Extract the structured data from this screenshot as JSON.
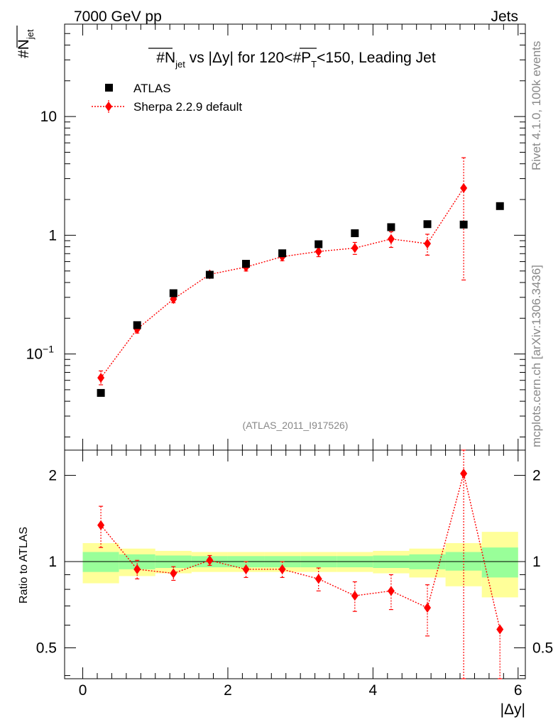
{
  "header": {
    "left": "7000 GeV pp",
    "right": "Jets"
  },
  "side_labels": {
    "rivet": "Rivet 4.1.0,  100k events",
    "mcplots": "mcplots.cern.ch [arXiv:1306.3436]"
  },
  "colors": {
    "atlas": "#000000",
    "sherpa": "#ff0000",
    "band_inner": "#99ff99",
    "band_outer": "#ffff99"
  },
  "chart_data": [
    {
      "type": "scatter",
      "title": "#N̅jet vs |Δy| for 120<#P̅T<150, Leading Jet",
      "title_parts": {
        "prefix": "#N",
        "sub1": "jet",
        "mid": " vs |Δy| for 120<#P",
        "sub2": "T",
        "suffix": "<150, Leading Jet"
      },
      "ylabel": "#N̅jet",
      "ylabel_parts": {
        "main": "#N",
        "sub": "jet"
      },
      "xlabel": "|Δy|",
      "yscale": "log",
      "xlim": [
        -0.25,
        6.1
      ],
      "ylim": [
        0.0155,
        60
      ],
      "yticks": [
        {
          "value": 10,
          "label": "10"
        },
        {
          "value": 1,
          "label": "1"
        },
        {
          "value": 0.1,
          "label": "10",
          "sup": "−1"
        }
      ],
      "watermark": "(ATLAS_2011_I917526)",
      "legend": {
        "position": "top-left",
        "entries": [
          "ATLAS",
          "Sherpa 2.2.9 default"
        ]
      },
      "series": [
        {
          "name": "ATLAS",
          "marker": "square",
          "x": [
            0.25,
            0.75,
            1.25,
            1.75,
            2.25,
            2.75,
            3.25,
            3.75,
            4.25,
            4.75,
            5.25,
            5.75
          ],
          "y": [
            0.047,
            0.175,
            0.325,
            0.465,
            0.575,
            0.705,
            0.84,
            1.04,
            1.17,
            1.24,
            1.23,
            1.76
          ]
        },
        {
          "name": "Sherpa 2.2.9 default",
          "marker": "diamond",
          "x": [
            0.25,
            0.75,
            1.25,
            1.75,
            2.25,
            2.75,
            3.25,
            3.75,
            4.25,
            4.75,
            5.25
          ],
          "y": [
            0.063,
            0.162,
            0.29,
            0.468,
            0.54,
            0.66,
            0.73,
            0.78,
            0.93,
            0.85,
            2.5
          ],
          "err_low": [
            0.008,
            0.012,
            0.02,
            0.02,
            0.04,
            0.05,
            0.07,
            0.09,
            0.14,
            0.17,
            2.08
          ],
          "err_high": [
            0.009,
            0.012,
            0.02,
            0.02,
            0.04,
            0.05,
            0.07,
            0.09,
            0.14,
            0.17,
            2.0
          ]
        }
      ]
    },
    {
      "type": "scatter",
      "ylabel": "Ratio to ATLAS",
      "xlabel": "|Δy|",
      "yscale": "log",
      "xlim": [
        -0.25,
        6.1
      ],
      "ylim": [
        0.39,
        2.45
      ],
      "yticks": [
        {
          "value": 2,
          "label": "2"
        },
        {
          "value": 1,
          "label": "1"
        },
        {
          "value": 0.5,
          "label": "0.5"
        }
      ],
      "xticks": [
        {
          "value": 0,
          "label": "0"
        },
        {
          "value": 2,
          "label": "2"
        },
        {
          "value": 4,
          "label": "4"
        },
        {
          "value": 6,
          "label": "6"
        }
      ],
      "bands": {
        "edges": [
          0,
          0.5,
          1.0,
          1.5,
          2.0,
          2.5,
          3.0,
          3.5,
          4.0,
          4.5,
          5.0,
          5.5,
          6.0
        ],
        "inner_low": [
          0.92,
          0.94,
          0.95,
          0.955,
          0.955,
          0.955,
          0.955,
          0.955,
          0.95,
          0.94,
          0.93,
          0.88
        ],
        "inner_high": [
          1.08,
          1.06,
          1.05,
          1.045,
          1.045,
          1.045,
          1.045,
          1.045,
          1.05,
          1.06,
          1.08,
          1.12
        ],
        "outer_low": [
          0.84,
          0.89,
          0.91,
          0.92,
          0.92,
          0.92,
          0.92,
          0.92,
          0.91,
          0.88,
          0.82,
          0.75
        ],
        "outer_high": [
          1.16,
          1.11,
          1.09,
          1.08,
          1.08,
          1.08,
          1.08,
          1.08,
          1.09,
          1.11,
          1.16,
          1.27
        ]
      },
      "series": [
        {
          "name": "Sherpa 2.2.9 default / ATLAS",
          "marker": "diamond",
          "x": [
            0.25,
            0.75,
            1.25,
            1.75,
            2.25,
            2.75,
            3.25,
            3.75,
            4.25,
            4.75,
            5.25,
            5.75
          ],
          "y": [
            1.34,
            0.94,
            0.91,
            1.01,
            0.94,
            0.94,
            0.87,
            0.76,
            0.79,
            0.69,
            2.03,
            0.58
          ],
          "err_low": [
            0.22,
            0.07,
            0.05,
            0.04,
            0.06,
            0.06,
            0.08,
            0.09,
            0.11,
            0.14,
            1.7,
            0.2
          ],
          "err_high": [
            0.22,
            0.07,
            0.05,
            0.04,
            0.06,
            0.06,
            0.08,
            0.09,
            0.11,
            0.14,
            0.5,
            0.0
          ]
        }
      ]
    }
  ]
}
